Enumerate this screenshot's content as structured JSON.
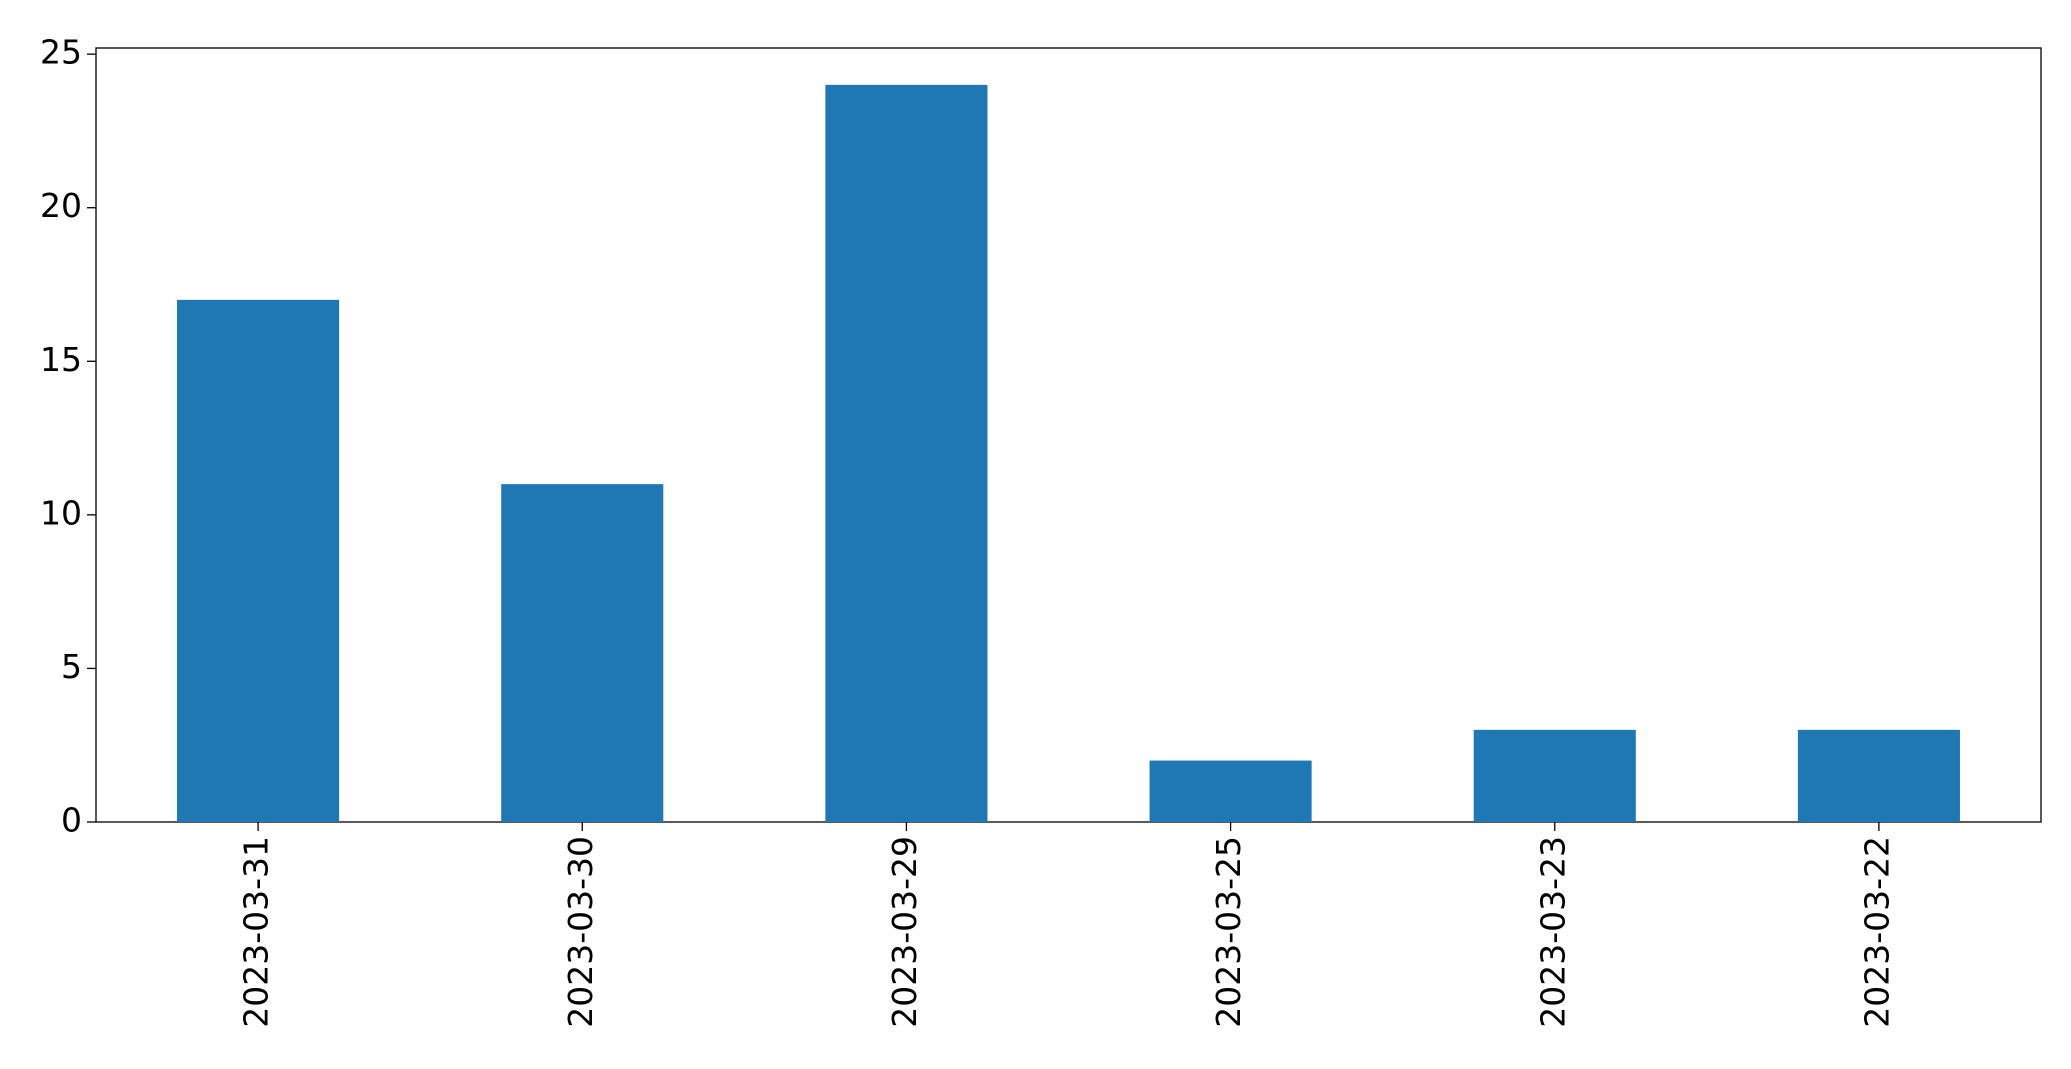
{
  "chart_data": {
    "type": "bar",
    "categories": [
      "2023-03-31",
      "2023-03-30",
      "2023-03-29",
      "2023-03-25",
      "2023-03-23",
      "2023-03-22"
    ],
    "values": [
      17,
      11,
      24,
      2,
      3,
      3
    ],
    "color": "#1f77b4",
    "ylim": [
      0,
      25.2
    ],
    "yticks": [
      0,
      5,
      10,
      15,
      20,
      25
    ],
    "grid": false
  }
}
